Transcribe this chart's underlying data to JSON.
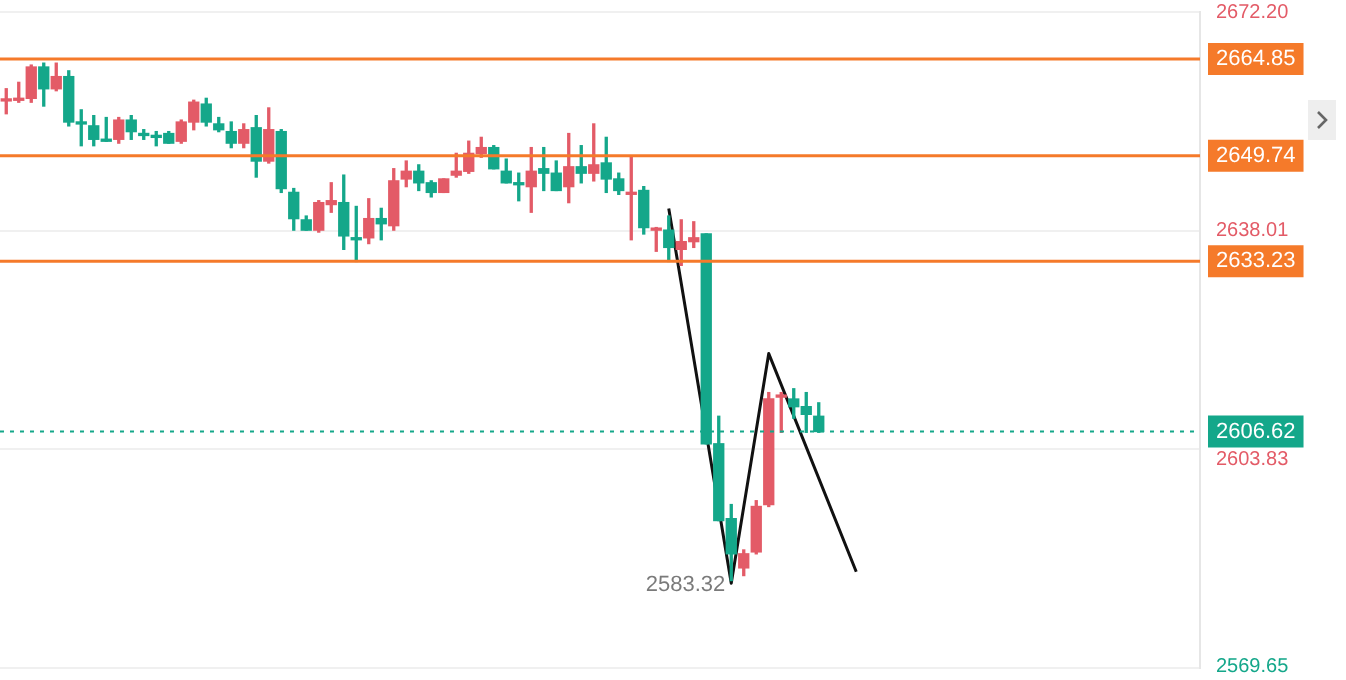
{
  "chart_data": {
    "type": "candlestick",
    "categories": [
      null,
      null,
      null,
      null,
      null,
      null,
      null,
      null,
      null,
      null,
      null,
      null,
      null,
      null,
      null,
      null,
      null,
      null,
      null,
      null,
      null,
      null,
      null,
      null,
      null,
      null,
      null,
      null,
      null,
      null,
      null,
      null,
      null,
      null,
      null,
      null,
      null,
      null,
      null,
      null,
      null,
      null,
      null,
      null,
      null,
      null,
      null,
      null,
      null,
      null,
      null,
      null,
      null,
      null,
      null,
      null,
      null,
      null,
      null,
      null,
      null,
      null,
      null,
      null,
      null,
      null,
      null,
      null,
      null,
      null,
      null,
      null,
      null,
      null,
      null,
      null,
      null,
      null,
      null,
      null,
      null,
      null,
      null,
      null,
      null,
      null,
      null,
      null,
      null,
      null,
      null,
      null,
      null,
      null,
      null,
      null
    ],
    "ohlc": [
      [
        2658.3,
        2660.2,
        2656.3,
        2658.4
      ],
      [
        2658.4,
        2661.2,
        2658.1,
        2658.7
      ],
      [
        2658.7,
        2663.9,
        2658.1,
        2663.6
      ],
      [
        2663.6,
        2664.2,
        2657.5,
        2660.2
      ],
      [
        2660.2,
        2664.2,
        2659.9,
        2662.1
      ],
      [
        2662.1,
        2663.0,
        2654.4,
        2655.0
      ],
      [
        2655.0,
        2656.9,
        2651.3,
        2654.7
      ],
      [
        2654.4,
        2656.0,
        2651.3,
        2652.3
      ],
      [
        2652.3,
        2655.7,
        2652.0,
        2652.0
      ],
      [
        2652.3,
        2655.7,
        2651.7,
        2655.3
      ],
      [
        2655.3,
        2656.0,
        2652.3,
        2653.5
      ],
      [
        2653.2,
        2653.8,
        2652.3,
        2652.9
      ],
      [
        2652.9,
        2653.5,
        2651.3,
        2652.6
      ],
      [
        2653.2,
        2653.5,
        2651.7,
        2651.7
      ],
      [
        2652.0,
        2655.3,
        2651.7,
        2655.0
      ],
      [
        2655.0,
        2658.4,
        2653.8,
        2658.1
      ],
      [
        2657.8,
        2658.7,
        2654.4,
        2655.0
      ],
      [
        2654.7,
        2655.7,
        2653.5,
        2653.8
      ],
      [
        2653.5,
        2655.0,
        2651.0,
        2651.7
      ],
      [
        2651.7,
        2654.7,
        2651.0,
        2653.8
      ],
      [
        2654.1,
        2656.0,
        2646.4,
        2648.9
      ],
      [
        2648.9,
        2657.2,
        2648.6,
        2653.8
      ],
      [
        2653.5,
        2653.8,
        2644.0,
        2644.6
      ],
      [
        2644.0,
        2644.6,
        2638.1,
        2639.9
      ],
      [
        2639.7,
        2640.3,
        2638.1,
        2638.1
      ],
      [
        2638.1,
        2642.7,
        2637.8,
        2642.4
      ],
      [
        2642.1,
        2645.5,
        2640.9,
        2642.7
      ],
      [
        2642.4,
        2646.7,
        2635.1,
        2637.2
      ],
      [
        2636.9,
        2641.8,
        2633.2,
        2636.6
      ],
      [
        2636.9,
        2643.0,
        2636.0,
        2639.9
      ],
      [
        2639.9,
        2641.5,
        2636.6,
        2639.1
      ],
      [
        2638.8,
        2647.7,
        2638.1,
        2645.8
      ],
      [
        2646.1,
        2648.9,
        2644.9,
        2647.3
      ],
      [
        2647.3,
        2648.3,
        2644.3,
        2645.5
      ],
      [
        2645.5,
        2645.8,
        2643.3,
        2644.0
      ],
      [
        2644.0,
        2646.1,
        2644.0,
        2646.1
      ],
      [
        2646.7,
        2650.1,
        2646.4,
        2647.3
      ],
      [
        2647.3,
        2652.0,
        2647.0,
        2650.1
      ],
      [
        2650.1,
        2652.6,
        2649.5,
        2651.0
      ],
      [
        2651.0,
        2651.3,
        2647.7,
        2647.7
      ],
      [
        2647.3,
        2649.2,
        2645.5,
        2645.5
      ],
      [
        2645.5,
        2647.0,
        2642.7,
        2645.2
      ],
      [
        2644.9,
        2651.0,
        2640.9,
        2647.3
      ],
      [
        2647.7,
        2651.0,
        2644.3,
        2647.0
      ],
      [
        2647.0,
        2648.9,
        2644.3,
        2644.3
      ],
      [
        2644.9,
        2653.2,
        2642.4,
        2648.0
      ],
      [
        2648.0,
        2651.3,
        2645.5,
        2647.0
      ],
      [
        2647.0,
        2654.7,
        2645.8,
        2648.3
      ],
      [
        2648.6,
        2652.6,
        2644.0,
        2646.1
      ],
      [
        2646.1,
        2647.0,
        2643.7,
        2644.3
      ],
      [
        2643.7,
        2649.5,
        2636.6,
        2644.0
      ],
      [
        2644.3,
        2644.9,
        2637.5,
        2638.5
      ],
      [
        2638.1,
        2638.5,
        2634.8,
        2638.4
      ],
      [
        2638.1,
        2640.3,
        2633.2,
        2635.4
      ],
      [
        2635.1,
        2639.7,
        2632.6,
        2636.3
      ],
      [
        2636.3,
        2639.4,
        2635.4,
        2636.9
      ],
      [
        2637.5,
        2637.5,
        2604.7,
        2604.7
      ],
      [
        2604.7,
        2609.0,
        2592.7,
        2592.7
      ],
      [
        2593.0,
        2595.2,
        2583.32,
        2587.5
      ],
      [
        2585.3,
        2588.1,
        2584.1,
        2587.5
      ],
      [
        2587.8,
        2595.8,
        2587.5,
        2594.9
      ],
      [
        2595.2,
        2612.7,
        2594.9,
        2611.7
      ],
      [
        2612.0,
        2612.7,
        2606.5,
        2612.1
      ],
      [
        2611.7,
        2613.3,
        2608.7,
        2610.5
      ],
      [
        2610.5,
        2612.7,
        2606.5,
        2609.3
      ],
      [
        2609.0,
        2611.1,
        2606.5,
        2606.62
      ],
      null,
      null,
      null,
      null,
      null,
      null,
      null,
      null,
      null,
      null,
      null,
      null,
      null,
      null,
      null,
      null,
      null,
      null,
      null,
      null,
      null,
      null,
      null,
      null,
      null,
      null,
      null,
      null,
      null,
      null
    ],
    "colors": [
      "#e35b67",
      "#e35b67",
      "#e35b67",
      "#14a78a",
      "#e35b67",
      "#14a78a",
      "#14a78a",
      "#14a78a",
      "#14a78a",
      "#e35b67",
      "#14a78a",
      "#14a78a",
      "#14a78a",
      "#14a78a",
      "#e35b67",
      "#e35b67",
      "#14a78a",
      "#14a78a",
      "#14a78a",
      "#e35b67",
      "#14a78a",
      "#e35b67",
      "#14a78a",
      "#14a78a",
      "#14a78a",
      "#e35b67",
      "#e35b67",
      "#14a78a",
      "#14a78a",
      "#e35b67",
      "#14a78a",
      "#e35b67",
      "#e35b67",
      "#14a78a",
      "#14a78a",
      "#e35b67",
      "#e35b67",
      "#e35b67",
      "#e35b67",
      "#14a78a",
      "#14a78a",
      "#14a78a",
      "#e35b67",
      "#14a78a",
      "#14a78a",
      "#e35b67",
      "#14a78a",
      "#e35b67",
      "#14a78a",
      "#14a78a",
      "#e35b67",
      "#14a78a",
      "#e35b67",
      "#14a78a",
      "#e35b67",
      "#e35b67",
      "#14a78a",
      "#14a78a",
      "#14a78a",
      "#e35b67",
      "#e35b67",
      "#e35b67",
      "#e35b67",
      "#14a78a",
      "#14a78a",
      "#14a78a",
      null,
      null,
      null,
      null,
      null,
      null,
      null,
      null,
      null,
      null,
      null,
      null,
      null,
      null,
      null,
      null,
      null,
      null,
      null,
      null,
      null,
      null,
      null,
      null,
      null,
      null,
      null,
      null,
      null,
      null
    ],
    "series": [
      {
        "type": "line",
        "color": "#111111",
        "values": [
          null,
          null,
          null,
          null,
          null,
          null,
          null,
          null,
          null,
          null,
          null,
          null,
          null,
          null,
          null,
          null,
          null,
          null,
          null,
          null,
          null,
          null,
          null,
          null,
          null,
          null,
          null,
          null,
          null,
          null,
          null,
          null,
          null,
          null,
          null,
          null,
          null,
          null,
          null,
          null,
          null,
          null,
          null,
          null,
          null,
          null,
          null,
          null,
          null,
          null,
          null,
          null,
          null,
          2641.5,
          null,
          null,
          null,
          null,
          2582.9,
          null,
          null,
          2618.8,
          null,
          null,
          null,
          null,
          null,
          null,
          2584.7,
          null,
          null,
          null,
          null,
          null,
          null,
          null,
          null,
          null,
          null,
          null,
          null,
          null,
          null,
          null,
          null,
          null,
          null,
          null,
          null,
          null,
          null,
          null,
          null,
          null,
          null,
          null
        ]
      }
    ],
    "ylim": [
      2569.65,
      2672.2
    ],
    "yticks": [
      {
        "value": 2569.65,
        "label": "2569.65"
      },
      {
        "value": 2603.83,
        "label": "2603.83"
      },
      {
        "value": 2638.01,
        "label": "2638.01"
      },
      {
        "value": 2672.2,
        "label": "2672.20"
      }
    ],
    "ref_lines": [
      {
        "axis": "y",
        "value": 2664.85,
        "label": "2664.85",
        "color": "#f57a2a"
      },
      {
        "axis": "y",
        "value": 2649.74,
        "label": "2649.74",
        "color": "#f57a2a"
      },
      {
        "axis": "y",
        "value": 2633.23,
        "label": "2633.23",
        "color": "#f57a2a"
      },
      {
        "axis": "y",
        "value": 2606.62,
        "label": "2606.62",
        "color": "#14a78a",
        "line_style": "dotted"
      }
    ],
    "annotations": [
      "2583.32"
    ],
    "grid": "y",
    "legend": false,
    "tick_labels": "y"
  }
}
